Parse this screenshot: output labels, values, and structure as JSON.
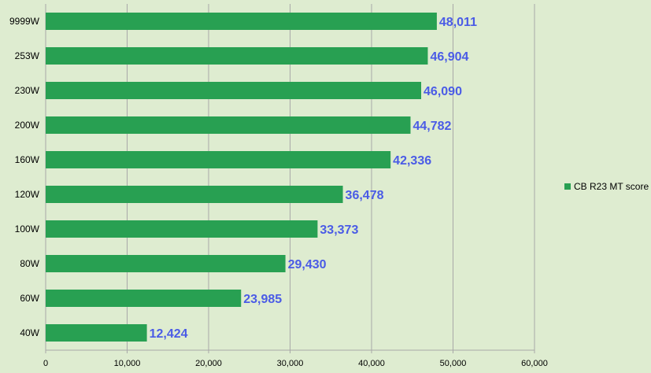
{
  "chart_data": {
    "type": "bar",
    "orientation": "horizontal",
    "categories": [
      "9999W",
      "253W",
      "230W",
      "200W",
      "160W",
      "120W",
      "100W",
      "80W",
      "60W",
      "40W"
    ],
    "series": [
      {
        "name": "CB R23 MT score",
        "values": [
          48011,
          46904,
          46090,
          44782,
          42336,
          36478,
          33373,
          29430,
          23985,
          12424
        ],
        "value_labels": [
          "48,011",
          "46,904",
          "46,090",
          "44,782",
          "42,336",
          "36,478",
          "33,373",
          "29,430",
          "23,985",
          "12,424"
        ]
      }
    ],
    "x_ticks": [
      "0",
      "10,000",
      "20,000",
      "30,000",
      "40,000",
      "50,000",
      "60,000"
    ],
    "xlim": [
      0,
      60000
    ],
    "title": "",
    "xlabel": "",
    "ylabel": "",
    "grid": "vertical",
    "legend": "right",
    "colors": {
      "bar": "#28a052",
      "value_label": "#4a5be6",
      "grid": "#a8a8a8",
      "background": "#deecd0"
    }
  }
}
